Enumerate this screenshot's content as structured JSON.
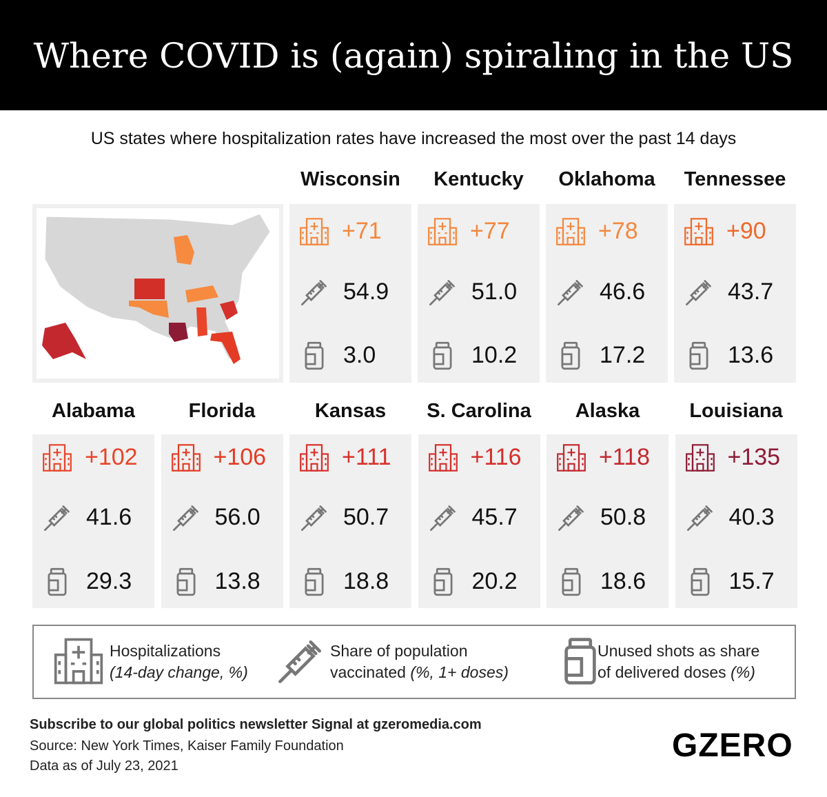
{
  "title": "Where COVID is (again) spiraling in the US",
  "subtitle": "US states where hospitalization rates have increased the most over the past 14 days",
  "states": [
    {
      "name": "Wisconsin",
      "hospitalization": "+71",
      "vaccinated": "54.9",
      "unused": "3.0",
      "color": "#f4873e"
    },
    {
      "name": "Kentucky",
      "hospitalization": "+77",
      "vaccinated": "51.0",
      "unused": "10.2",
      "color": "#f4873e"
    },
    {
      "name": "Oklahoma",
      "hospitalization": "+78",
      "vaccinated": "46.6",
      "unused": "17.2",
      "color": "#f4873e"
    },
    {
      "name": "Tennessee",
      "hospitalization": "+90",
      "vaccinated": "43.7",
      "unused": "13.6",
      "color": "#ee692c"
    },
    {
      "name": "Alabama",
      "hospitalization": "+102",
      "vaccinated": "41.6",
      "unused": "29.3",
      "color": "#e8452a"
    },
    {
      "name": "Florida",
      "hospitalization": "+106",
      "vaccinated": "56.0",
      "unused": "13.8",
      "color": "#e33b24"
    },
    {
      "name": "Kansas",
      "hospitalization": "+111",
      "vaccinated": "50.7",
      "unused": "18.8",
      "color": "#d8302a"
    },
    {
      "name": "S. Carolina",
      "hospitalization": "+116",
      "vaccinated": "45.7",
      "unused": "20.2",
      "color": "#d4302c"
    },
    {
      "name": "Alaska",
      "hospitalization": "+118",
      "vaccinated": "50.8",
      "unused": "18.6",
      "color": "#c3282f"
    },
    {
      "name": "Louisiana",
      "hospitalization": "+135",
      "vaccinated": "40.3",
      "unused": "15.7",
      "color": "#8e1b35"
    }
  ],
  "legend": [
    {
      "line1": "Hospitalizations",
      "italic": "(14-day change, %)"
    },
    {
      "line1": "Share of population",
      "line2": "vaccinated",
      "italic": "(%, 1+ doses)"
    },
    {
      "line1": "Unused shots as share",
      "line2": "of delivered doses",
      "italic": "(%)"
    }
  ],
  "footer": {
    "subscribe": "Subscribe to our global politics newsletter Signal at gzeromedia.com",
    "source": "Source: New York Times, Kaiser Family Foundation",
    "date": "Data as of July 23, 2021",
    "logo": "GZERO"
  }
}
